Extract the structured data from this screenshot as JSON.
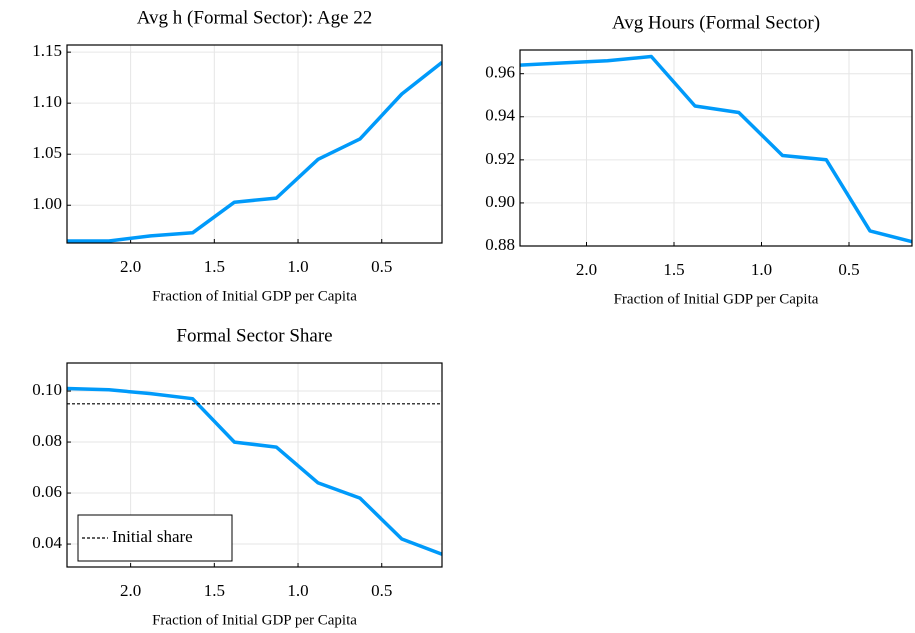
{
  "chart_data": [
    {
      "type": "line",
      "title": "Avg h (Formal Sector): Age 22",
      "xlabel": "Fraction of Initial GDP per Capita",
      "x": [
        2.38,
        2.13,
        1.88,
        1.63,
        1.38,
        1.13,
        0.88,
        0.63,
        0.38,
        0.14
      ],
      "series": [
        {
          "color": "#009afa",
          "values": [
            0.965,
            0.965,
            0.97,
            0.973,
            1.003,
            1.007,
            1.045,
            1.065,
            1.109,
            1.14
          ]
        }
      ],
      "xlim": [
        2.38,
        0.14
      ],
      "xticks": [
        {
          "value": 2,
          "label": "2.0"
        },
        1.5,
        {
          "value": 1,
          "label": "1.0"
        },
        0.5
      ],
      "ylim": [
        0.963,
        1.157
      ],
      "yticks": [
        {
          "value": 1,
          "label": "1.00"
        },
        1.05,
        {
          "value": 1.1,
          "label": "1.10"
        },
        1.15
      ],
      "grid": true
    },
    {
      "type": "line",
      "title": "Avg Hours (Formal Sector)",
      "xlabel": "Fraction of Initial GDP per Capita",
      "x": [
        2.38,
        2.13,
        1.88,
        1.63,
        1.38,
        1.13,
        0.88,
        0.63,
        0.38,
        0.14
      ],
      "series": [
        {
          "color": "#009afa",
          "values": [
            0.964,
            0.965,
            0.966,
            0.968,
            0.945,
            0.942,
            0.922,
            0.92,
            0.887,
            0.882
          ]
        }
      ],
      "xlim": [
        2.38,
        0.14
      ],
      "xticks": [
        {
          "value": 2,
          "label": "2.0"
        },
        1.5,
        {
          "value": 1,
          "label": "1.0"
        },
        0.5
      ],
      "ylim": [
        0.88,
        0.971
      ],
      "yticks": [
        0.88,
        {
          "value": 0.9,
          "label": "0.90"
        },
        0.92,
        0.94,
        0.96
      ],
      "grid": true
    },
    {
      "type": "line",
      "title": "Formal Sector Share",
      "xlabel": "Fraction of Initial GDP per Capita",
      "x": [
        2.38,
        2.13,
        1.88,
        1.63,
        1.38,
        1.13,
        0.88,
        0.63,
        0.38,
        0.14
      ],
      "series": [
        {
          "color": "#009afa",
          "values": [
            0.101,
            0.1005,
            0.099,
            0.097,
            0.08,
            0.078,
            0.064,
            0.058,
            0.042,
            0.036
          ]
        }
      ],
      "hline": {
        "name": "Initial share",
        "value": 0.095,
        "color": "#000000",
        "style": "dashed"
      },
      "legend": "bottom left",
      "xlim": [
        2.38,
        0.14
      ],
      "xticks": [
        {
          "value": 2,
          "label": "2.0"
        },
        1.5,
        {
          "value": 1,
          "label": "1.0"
        },
        0.5
      ],
      "ylim": [
        0.031,
        0.111
      ],
      "yticks": [
        0.04,
        0.06,
        0.08,
        {
          "value": 0.1,
          "label": "0.10"
        }
      ],
      "grid": true
    }
  ]
}
